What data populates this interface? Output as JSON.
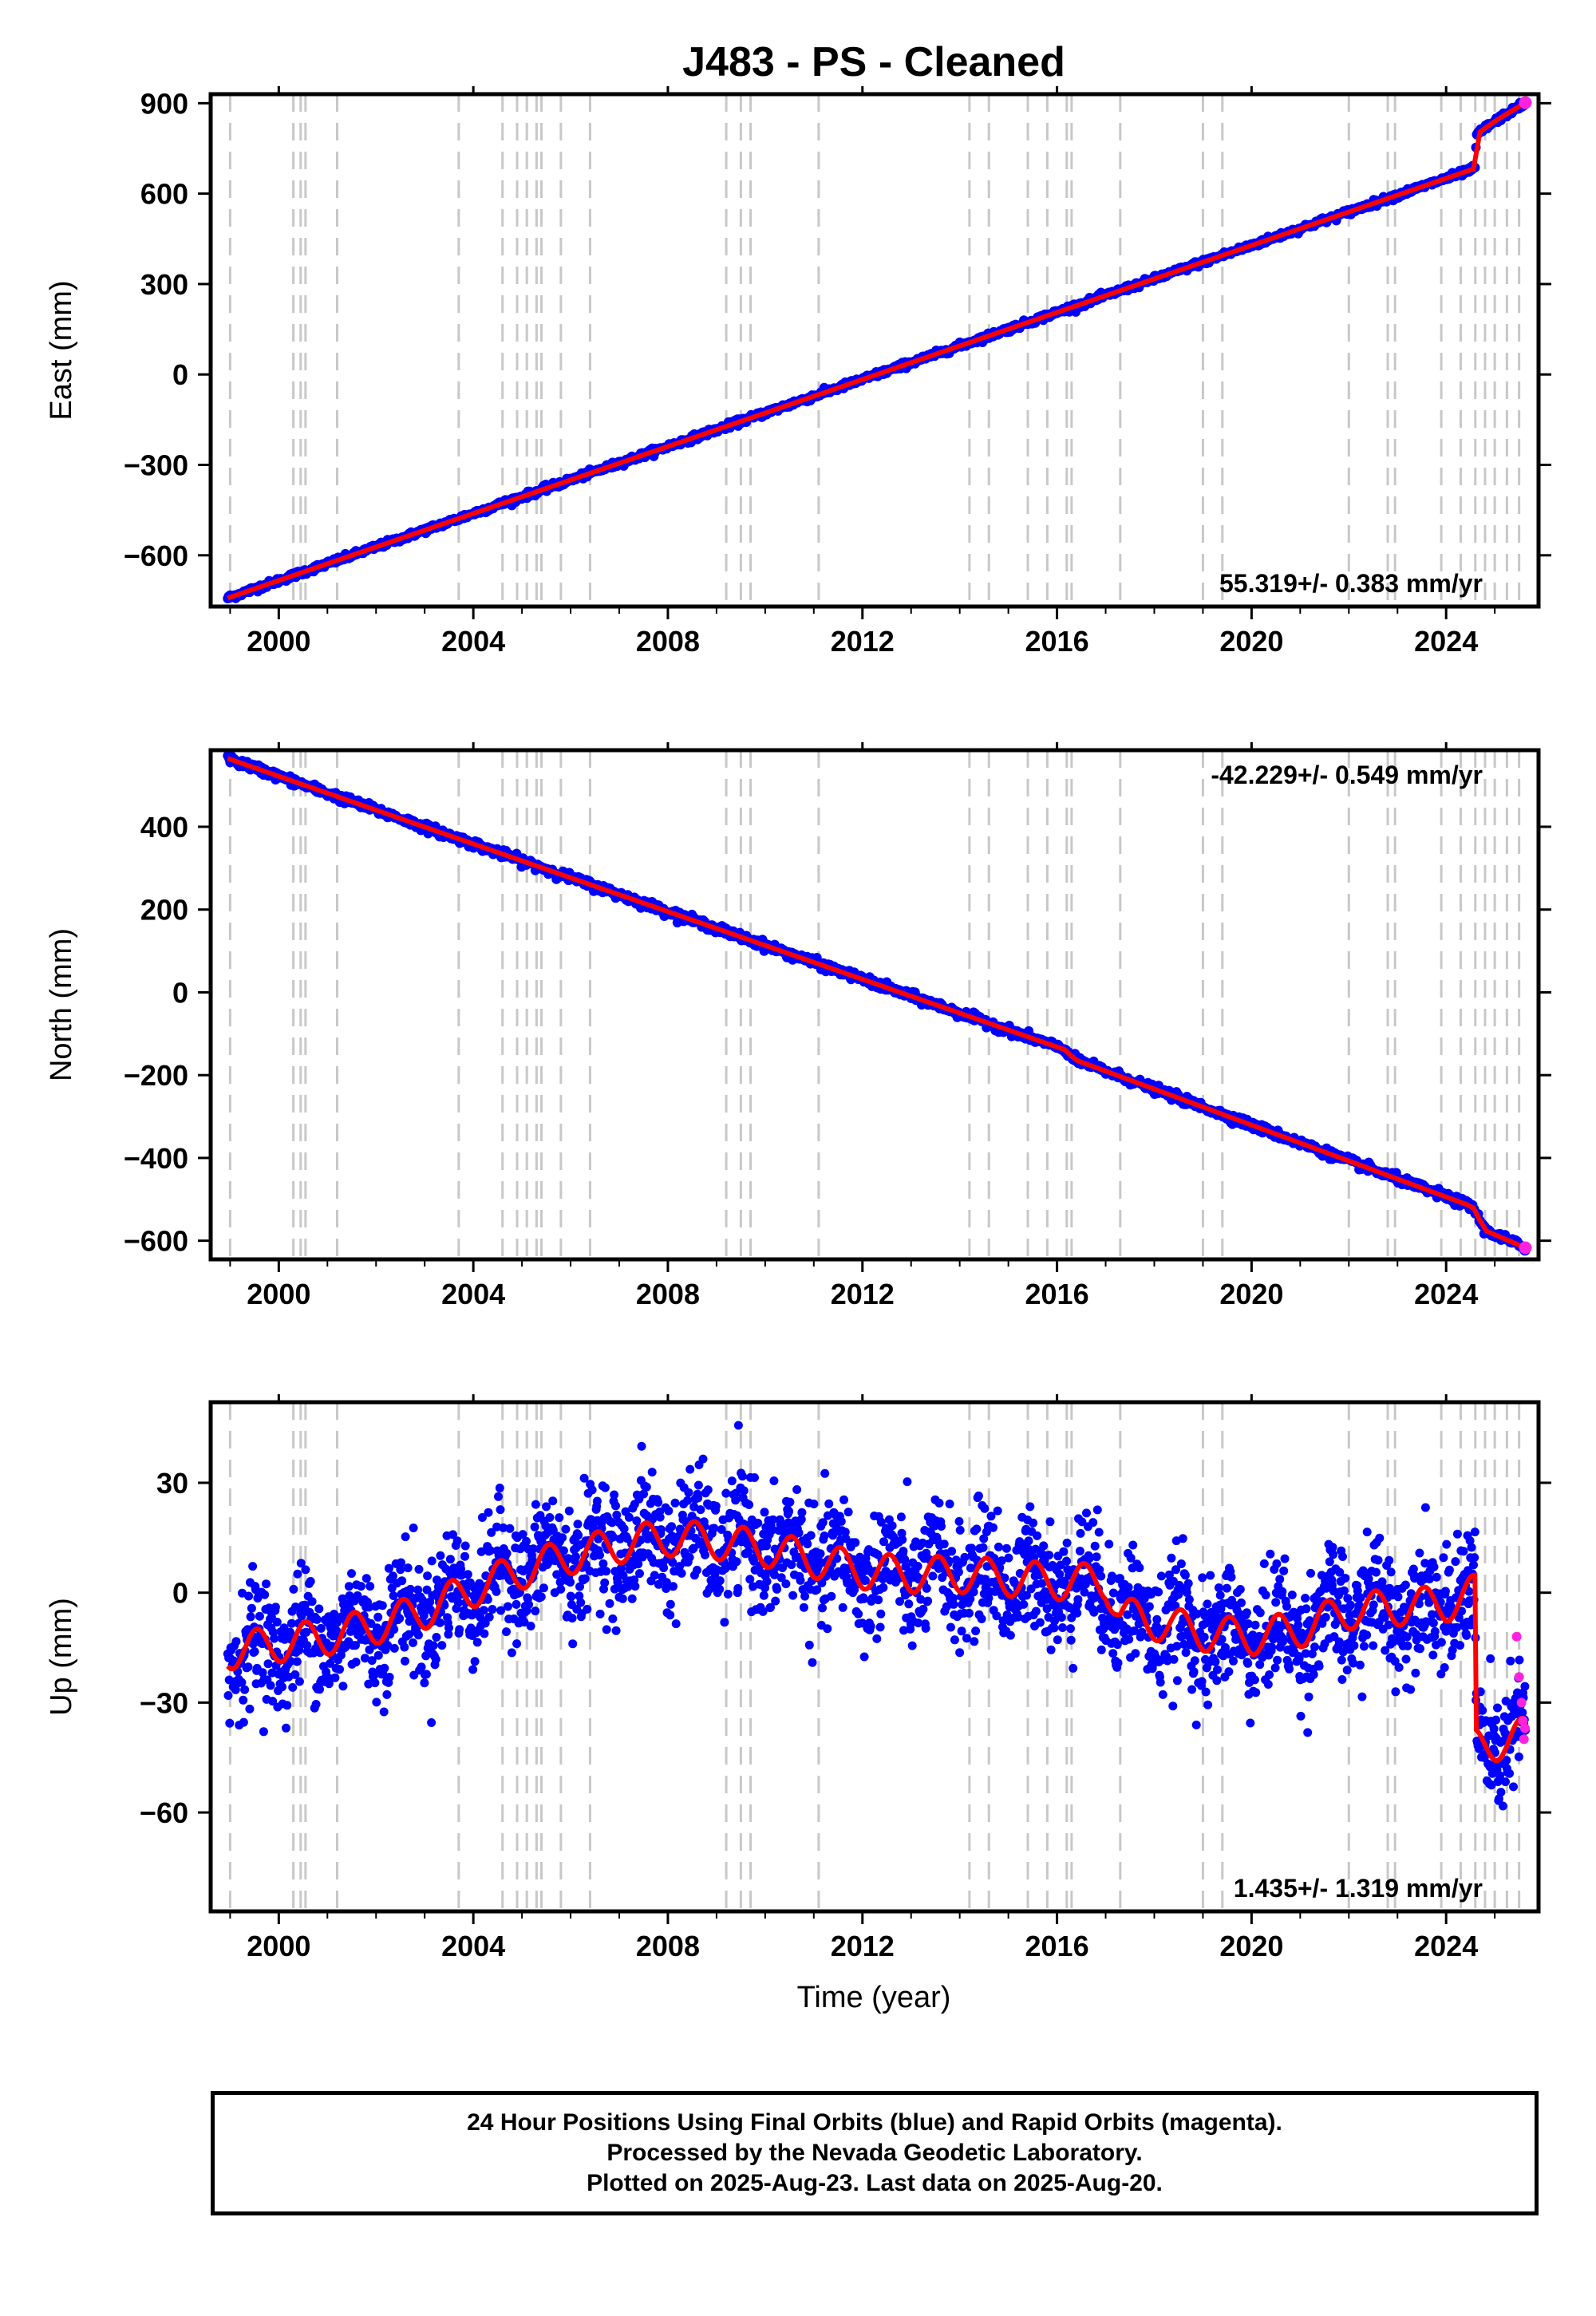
{
  "title": "J483  - PS - Cleaned",
  "x_axis_label": "Time (year)",
  "colors": {
    "final_orbits": "#0000ff",
    "rapid_orbits": "#ff22dd",
    "model": "#ff0000",
    "event_lines": "#c8c8c8",
    "frame": "#000000"
  },
  "footer": {
    "line1": "24 Hour Positions Using Final Orbits (blue) and Rapid Orbits (magenta).",
    "line2": "Processed by the Nevada Geodetic Laboratory.",
    "line3": "Plotted on 2025-Aug-23. Last data on 2025-Aug-20."
  },
  "chart_data": [
    {
      "type": "scatter",
      "panel": "east",
      "ylabel": "East (mm)",
      "rate_label": "55.319+/- 0.383 mm/yr",
      "xlim": [
        1998.6,
        2025.9
      ],
      "ylim": [
        -770,
        930
      ],
      "x_ticks": [
        2000,
        2004,
        2008,
        2012,
        2016,
        2020,
        2024
      ],
      "y_ticks": [
        900,
        600,
        300,
        0,
        -300,
        -600
      ],
      "event_lines": [
        1999.0,
        2000.3,
        2000.45,
        2000.55,
        2001.2,
        2003.7,
        2004.6,
        2004.9,
        2005.1,
        2005.3,
        2005.4,
        2005.8,
        2006.4,
        2009.2,
        2009.5,
        2009.7,
        2011.1,
        2014.2,
        2014.6,
        2015.4,
        2015.8,
        2016.2,
        2016.3,
        2017.3,
        2019.0,
        2019.4,
        2022.0,
        2022.8,
        2022.95,
        2023.9,
        2024.3,
        2024.6,
        2024.8,
        2025.0,
        2025.25,
        2025.5
      ],
      "series": [
        {
          "style": "trend",
          "x": [
            1998.95,
            2024.6
          ],
          "values": [
            -742,
            684
          ]
        },
        {
          "style": "step",
          "x": [
            2024.6,
            2024.62
          ],
          "values": [
            684,
            796
          ]
        },
        {
          "style": "trend",
          "x": [
            2024.62,
            2025.0,
            2025.63
          ],
          "values": [
            796,
            840,
            902
          ]
        }
      ],
      "noise_mm": 5
    },
    {
      "type": "scatter",
      "panel": "north",
      "ylabel": "North (mm)",
      "rate_label": "-42.229+/- 0.549 mm/yr",
      "xlim": [
        1998.6,
        2025.9
      ],
      "ylim": [
        -645,
        585
      ],
      "x_ticks": [
        2000,
        2004,
        2008,
        2012,
        2016,
        2020,
        2024
      ],
      "y_ticks": [
        400,
        200,
        0,
        -200,
        -400,
        -600
      ],
      "event_lines": [
        1999.0,
        2000.3,
        2000.45,
        2000.55,
        2001.2,
        2003.7,
        2004.6,
        2004.9,
        2005.1,
        2005.3,
        2005.4,
        2005.8,
        2006.4,
        2009.2,
        2009.5,
        2009.7,
        2011.1,
        2014.2,
        2014.6,
        2015.4,
        2015.8,
        2016.2,
        2016.3,
        2017.3,
        2019.0,
        2019.4,
        2022.0,
        2022.8,
        2022.95,
        2023.9,
        2024.3,
        2024.6,
        2024.8,
        2025.0,
        2025.25,
        2025.5
      ],
      "series": [
        {
          "style": "trend",
          "x": [
            1998.95,
            2016.2,
            2016.35,
            2024.55,
            2024.8,
            2025.63
          ],
          "values": [
            565,
            -140,
            -162,
            -518,
            -575,
            -617
          ]
        }
      ],
      "noise_mm": 5
    },
    {
      "type": "scatter",
      "panel": "up",
      "ylabel": "Up (mm)",
      "rate_label": "1.435+/- 1.319 mm/yr",
      "xlim": [
        1998.6,
        2025.9
      ],
      "ylim": [
        -87,
        52
      ],
      "x_ticks": [
        2000,
        2004,
        2008,
        2012,
        2016,
        2020,
        2024
      ],
      "y_ticks": [
        30,
        0,
        -30,
        -60
      ],
      "event_lines": [
        1999.0,
        2000.3,
        2000.45,
        2000.55,
        2001.2,
        2003.7,
        2004.6,
        2004.9,
        2005.1,
        2005.3,
        2005.4,
        2005.8,
        2006.4,
        2009.2,
        2009.5,
        2009.7,
        2011.1,
        2014.2,
        2014.6,
        2015.4,
        2015.8,
        2016.2,
        2016.3,
        2017.3,
        2019.0,
        2019.4,
        2022.0,
        2022.8,
        2022.95,
        2023.9,
        2024.3,
        2024.6,
        2024.8,
        2025.0,
        2025.25,
        2025.5
      ],
      "series": [
        {
          "style": "model",
          "x": [
            1998.95,
            2000.0,
            2001.0,
            2002.0,
            2003.0,
            2004.0,
            2005.0,
            2006.0,
            2007.0,
            2008.0,
            2009.0,
            2010.0,
            2011.0,
            2012.0,
            2013.0,
            2014.0,
            2015.0,
            2016.0,
            2017.0,
            2017.3,
            2018.0,
            2019.0,
            2020.0,
            2021.0,
            2022.0,
            2023.0,
            2024.0,
            2024.6,
            2024.62,
            2025.0,
            2025.63
          ],
          "values": [
            -16,
            -14,
            -12,
            -9,
            -5,
            1,
            6,
            10,
            13,
            15,
            14,
            12,
            9,
            6,
            5,
            5,
            4,
            3,
            3,
            -6,
            -8,
            -11,
            -12,
            -10,
            -5,
            -4,
            -3,
            0,
            -42,
            -41,
            -39
          ]
        },
        {
          "style": "rapid",
          "x": [
            2025.45,
            2025.5,
            2025.55,
            2025.58,
            2025.6,
            2025.62
          ],
          "values": [
            -12,
            -23,
            -30,
            -35,
            -40,
            -37
          ]
        }
      ],
      "noise_mm": 8
    }
  ]
}
